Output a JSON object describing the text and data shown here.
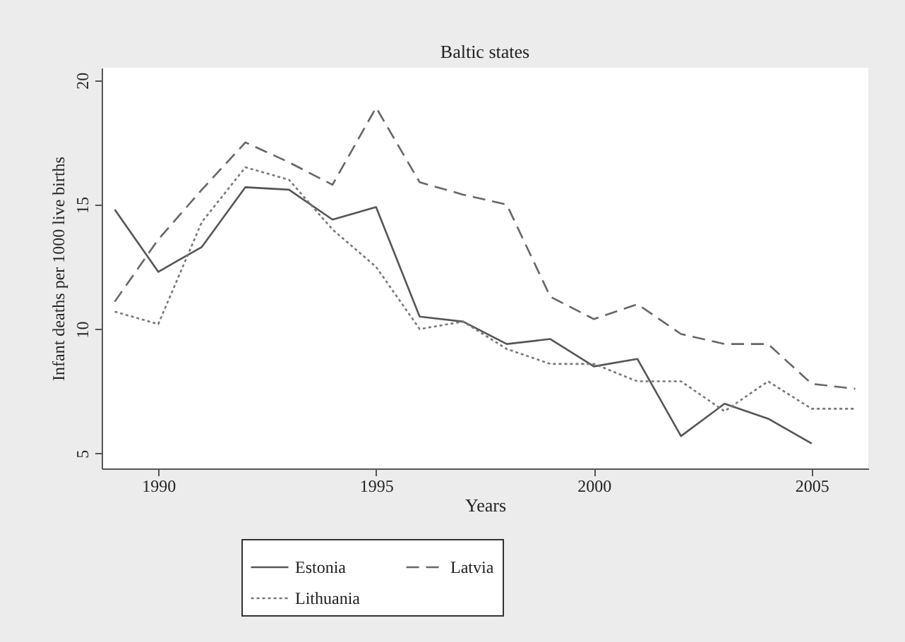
{
  "chart_data": {
    "type": "line",
    "title": "Baltic states",
    "xlabel": "Years",
    "ylabel": "Infant deaths per 1000 live births",
    "x": [
      1989,
      1990,
      1991,
      1992,
      1993,
      1994,
      1995,
      1996,
      1997,
      1998,
      1999,
      2000,
      2001,
      2002,
      2003,
      2004,
      2005,
      2006
    ],
    "series": [
      {
        "name": "Estonia",
        "color": "#555555",
        "line_style": "solid",
        "values": [
          14.8,
          12.3,
          13.3,
          15.7,
          15.6,
          14.4,
          14.9,
          10.5,
          10.3,
          9.4,
          9.6,
          8.5,
          8.8,
          5.7,
          7.0,
          6.4,
          5.4,
          null
        ]
      },
      {
        "name": "Latvia",
        "color": "#666666",
        "line_style": "dashed",
        "values": [
          11.1,
          13.6,
          15.6,
          17.5,
          16.7,
          15.8,
          18.9,
          15.9,
          15.4,
          15.0,
          11.3,
          10.4,
          11.0,
          9.8,
          9.4,
          9.4,
          7.8,
          7.6
        ]
      },
      {
        "name": "Lithuania",
        "color": "#777777",
        "line_style": "dotted",
        "values": [
          10.7,
          10.2,
          14.3,
          16.5,
          16.0,
          14.0,
          12.5,
          10.0,
          10.3,
          9.2,
          8.6,
          8.6,
          7.9,
          7.9,
          6.7,
          7.9,
          6.8,
          6.8
        ]
      }
    ],
    "xlim": [
      1988.7,
      2006.3
    ],
    "ylim": [
      4.4,
      20.5
    ],
    "xticks": [
      1990,
      1995,
      2000,
      2005
    ],
    "yticks": [
      5,
      10,
      15,
      20
    ],
    "grid": false,
    "legend": "bottom"
  }
}
